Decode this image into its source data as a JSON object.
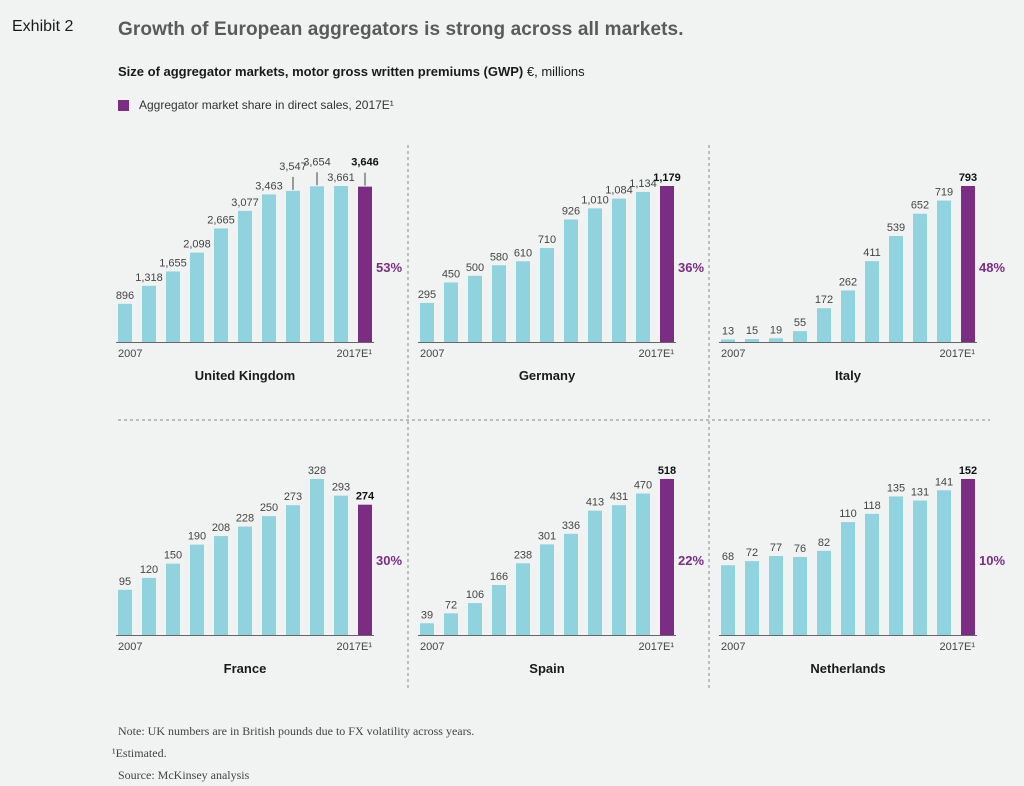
{
  "header": {
    "exhibit": "Exhibit 2",
    "title": "Growth of European aggregators is strong across all markets.",
    "subtitle_bold": "Size of aggregator markets, motor gross written premiums (GWP)",
    "subtitle_rest": " €, millions",
    "legend_label": "Aggregator market share in direct sales, 2017E¹"
  },
  "colors": {
    "bar": "#8fd3df",
    "highlight": "#7b2c83",
    "share_text": "#7b2c83",
    "divider": "#888888"
  },
  "chart_data": [
    {
      "type": "bar",
      "title": "United Kingdom",
      "x_start_label": "2007",
      "x_end_label": "2017E¹",
      "values": [
        896,
        1318,
        1655,
        2098,
        2665,
        3077,
        3463,
        3547,
        3654,
        3661,
        3646
      ],
      "value_labels": [
        "896",
        "1,318",
        "1,655",
        "2,098",
        "2,665",
        "3,077",
        "3,463",
        "3,547",
        "3,654",
        "3,661",
        "3,646"
      ],
      "highlight_index": 10,
      "share": "53%"
    },
    {
      "type": "bar",
      "title": "Germany",
      "x_start_label": "2007",
      "x_end_label": "2017E¹",
      "values": [
        295,
        450,
        500,
        580,
        610,
        710,
        926,
        1010,
        1084,
        1134,
        1179
      ],
      "value_labels": [
        "295",
        "450",
        "500",
        "580",
        "610",
        "710",
        "926",
        "1,010",
        "1,084",
        "1,134",
        "1,179"
      ],
      "highlight_index": 10,
      "share": "36%"
    },
    {
      "type": "bar",
      "title": "Italy",
      "x_start_label": "2007",
      "x_end_label": "2017E¹",
      "values": [
        13,
        15,
        19,
        55,
        172,
        262,
        411,
        539,
        652,
        719,
        793
      ],
      "value_labels": [
        "13",
        "15",
        "19",
        "55",
        "172",
        "262",
        "411",
        "539",
        "652",
        "719",
        "793"
      ],
      "highlight_index": 10,
      "share": "48%"
    },
    {
      "type": "bar",
      "title": "France",
      "x_start_label": "2007",
      "x_end_label": "2017E¹",
      "values": [
        95,
        120,
        150,
        190,
        208,
        228,
        250,
        273,
        328,
        293,
        274
      ],
      "value_labels": [
        "95",
        "120",
        "150",
        "190",
        "208",
        "228",
        "250",
        "273",
        "328",
        "293",
        "274"
      ],
      "highlight_index": 10,
      "share": "30%"
    },
    {
      "type": "bar",
      "title": "Spain",
      "x_start_label": "2007",
      "x_end_label": "2017E¹",
      "values": [
        39,
        72,
        106,
        166,
        238,
        301,
        336,
        413,
        431,
        470,
        518
      ],
      "value_labels": [
        "39",
        "72",
        "106",
        "166",
        "238",
        "301",
        "336",
        "413",
        "431",
        "470",
        "518"
      ],
      "highlight_index": 10,
      "share": "22%"
    },
    {
      "type": "bar",
      "title": "Netherlands",
      "x_start_label": "2007",
      "x_end_label": "2017E¹",
      "values": [
        68,
        72,
        77,
        76,
        82,
        110,
        118,
        135,
        131,
        141,
        152
      ],
      "value_labels": [
        "68",
        "72",
        "77",
        "76",
        "82",
        "110",
        "118",
        "135",
        "131",
        "141",
        "152"
      ],
      "highlight_index": 10,
      "share": "10%"
    }
  ],
  "notes": {
    "note": "Note: UK numbers are in British pounds due to FX volatility across years.",
    "footnote": "¹Estimated.",
    "source": "Source: McKinsey analysis"
  }
}
